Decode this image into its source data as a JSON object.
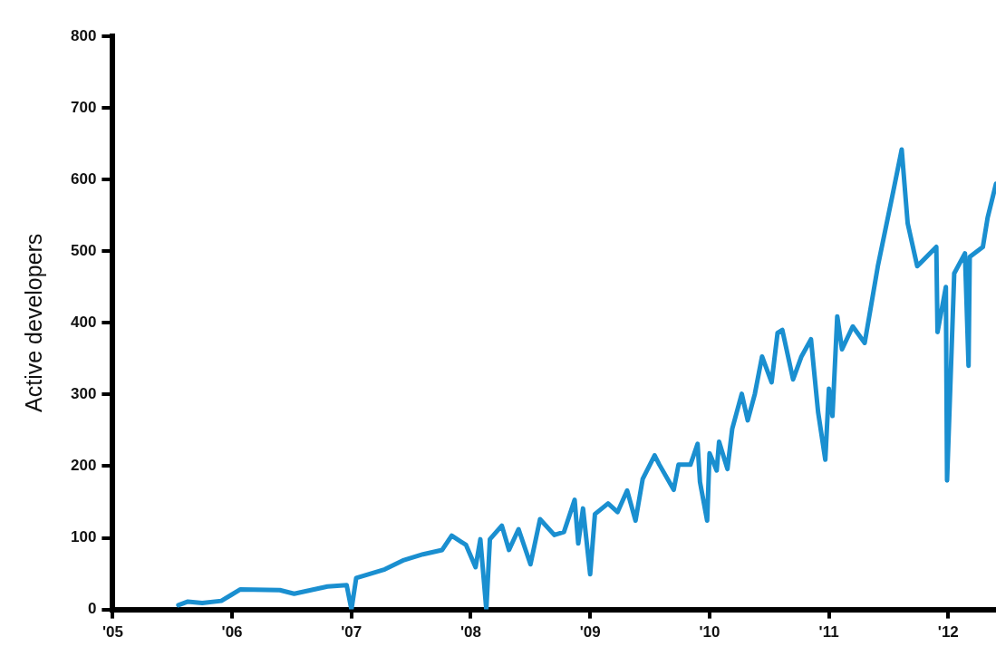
{
  "chart_data": {
    "type": "line",
    "ylabel": "Active developers",
    "xlim": [
      2005,
      2012.4
    ],
    "xticks": [
      {
        "value": 2005,
        "label": "'05"
      },
      {
        "value": 2006,
        "label": "'06"
      },
      {
        "value": 2007,
        "label": "'07"
      },
      {
        "value": 2008,
        "label": "'08"
      },
      {
        "value": 2009,
        "label": "'09"
      },
      {
        "value": 2010,
        "label": "'10"
      },
      {
        "value": 2011,
        "label": "'11"
      },
      {
        "value": 2012,
        "label": "'12"
      }
    ],
    "ylim": [
      0,
      800
    ],
    "yticks": [
      0,
      100,
      200,
      300,
      400,
      500,
      600,
      700,
      800
    ],
    "grid": false,
    "legend": false,
    "marker": "none",
    "line_style": "solid",
    "series": [
      {
        "color": "#1a8fd0",
        "x": [
          2005.55,
          2005.63,
          2005.75,
          2005.91,
          2006.07,
          2006.4,
          2006.52,
          2006.8,
          2006.96,
          2007,
          2007.04,
          2007.28,
          2007.44,
          2007.6,
          2007.76,
          2007.84,
          2007.96,
          2008.04,
          2008.08,
          2008.13,
          2008.16,
          2008.26,
          2008.32,
          2008.4,
          2008.5,
          2008.58,
          2008.7,
          2008.78,
          2008.87,
          2008.9,
          2008.94,
          2009,
          2009.04,
          2009.15,
          2009.23,
          2009.31,
          2009.38,
          2009.44,
          2009.54,
          2009.58,
          2009.7,
          2009.74,
          2009.84,
          2009.9,
          2009.92,
          2009.98,
          2010,
          2010.06,
          2010.08,
          2010.15,
          2010.19,
          2010.27,
          2010.32,
          2010.38,
          2010.44,
          2010.52,
          2010.57,
          2010.61,
          2010.7,
          2010.77,
          2010.85,
          2010.91,
          2010.97,
          2011,
          2011.03,
          2011.07,
          2011.11,
          2011.2,
          2011.3,
          2011.41,
          2011.54,
          2011.61,
          2011.66,
          2011.74,
          2011.9,
          2011.91,
          2011.98,
          2011.99,
          2012.05,
          2012.14,
          2012.17,
          2012.18,
          2012.29,
          2012.33,
          2012.4
        ],
        "values": [
          6,
          11,
          9,
          12,
          28,
          27,
          22,
          32,
          34,
          0,
          44,
          56,
          69,
          77,
          83,
          103,
          90,
          59,
          98,
          0,
          98,
          117,
          83,
          112,
          63,
          126,
          104,
          108,
          153,
          92,
          141,
          49,
          133,
          148,
          136,
          166,
          124,
          182,
          215,
          202,
          167,
          202,
          202,
          231,
          178,
          124,
          218,
          194,
          234,
          196,
          252,
          301,
          264,
          301,
          353,
          317,
          386,
          390,
          321,
          353,
          377,
          275,
          209,
          308,
          270,
          409,
          363,
          395,
          372,
          479,
          584,
          642,
          539,
          479,
          506,
          387,
          450,
          180,
          469,
          497,
          340,
          492,
          506,
          547,
          594
        ]
      }
    ]
  }
}
